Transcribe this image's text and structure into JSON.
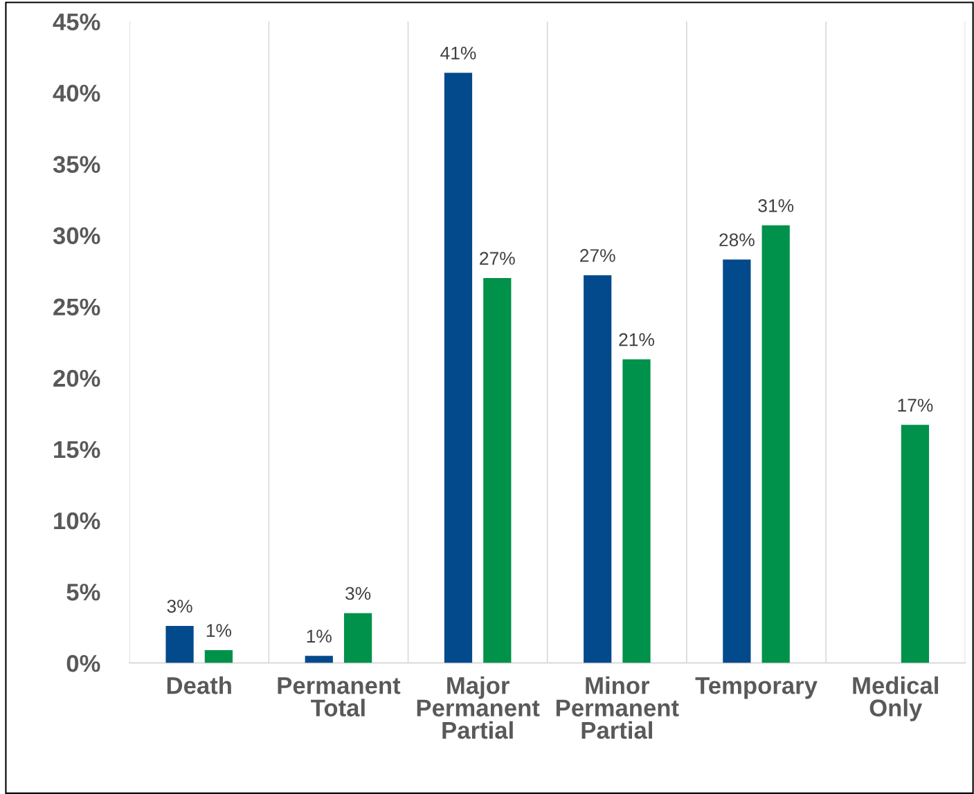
{
  "chart_data": {
    "type": "bar",
    "categories": [
      "Death",
      "Permanent\nTotal",
      "Major\nPermanent\nPartial",
      "Minor\nPermanent\nPartial",
      "Temporary",
      "Medical\nOnly"
    ],
    "series": [
      {
        "color": "#034a8c",
        "values": [
          2.6,
          0.5,
          41.4,
          27.2,
          28.3,
          null
        ],
        "value_labels": [
          "3%",
          "1%",
          "41%",
          "27%",
          "28%",
          null
        ]
      },
      {
        "color": "#00914a",
        "values": [
          0.9,
          3.5,
          27.0,
          21.3,
          30.7,
          16.7
        ],
        "value_labels": [
          "1%",
          "3%",
          "27%",
          "21%",
          "31%",
          "17%"
        ]
      }
    ],
    "ylim": [
      0,
      45
    ],
    "yticks": [
      {
        "value": 0,
        "label": "0%"
      },
      {
        "value": 5,
        "label": "5%"
      },
      {
        "value": 10,
        "label": "10%"
      },
      {
        "value": 15,
        "label": "15%"
      },
      {
        "value": 20,
        "label": "20%"
      },
      {
        "value": 25,
        "label": "25%"
      },
      {
        "value": 30,
        "label": "30%"
      },
      {
        "value": 35,
        "label": "35%"
      },
      {
        "value": 40,
        "label": "40%"
      },
      {
        "value": 45,
        "label": "45%"
      }
    ],
    "grid": "x",
    "legend": false
  }
}
